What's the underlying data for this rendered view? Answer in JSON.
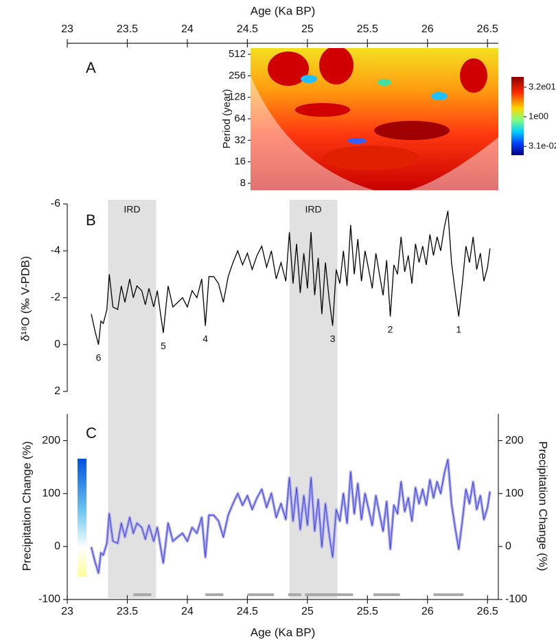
{
  "chart_data": [
    {
      "type": "heatmap",
      "panel": "A",
      "x_label": "Age (Ka BP)",
      "y_label": "Period (year)",
      "xlim": [
        23,
        26.59
      ],
      "xticks": [
        23,
        23.5,
        24,
        24.5,
        25,
        25.5,
        26,
        26.5
      ],
      "ylim": [
        6.4,
        626
      ],
      "log_y": true,
      "yticks": [
        8,
        16,
        32,
        64,
        128,
        256,
        512
      ],
      "clim": [
        0.011,
        107
      ],
      "colorbar_ticks": [
        {
          "value": 32,
          "label": "3.2e01"
        },
        {
          "value": 1,
          "label": "1e00"
        },
        {
          "value": 0.031,
          "label": "3.1e-02"
        }
      ]
    },
    {
      "type": "line",
      "panel": "B",
      "y_label": "δ¹⁸O (‰ V-PDB)",
      "color": "#000000",
      "xlim": [
        23,
        26.59
      ],
      "ylim": [
        2,
        -6
      ],
      "yticks": [
        -6,
        -4,
        -2,
        0,
        2
      ],
      "shaded": [
        {
          "range": [
            23.34,
            23.74
          ],
          "label": "IRD"
        },
        {
          "range": [
            24.85,
            25.25
          ],
          "label": "IRD"
        }
      ],
      "annotations": [
        {
          "text": "6",
          "x": 23.26,
          "y": 0.0
        },
        {
          "text": "5",
          "x": 23.8,
          "y": -0.5
        },
        {
          "text": "4",
          "x": 24.15,
          "y": -0.8
        },
        {
          "text": "3",
          "x": 25.21,
          "y": -0.8
        },
        {
          "text": "2",
          "x": 25.69,
          "y": -1.2
        },
        {
          "text": "1",
          "x": 26.26,
          "y": -1.2
        }
      ],
      "x": [
        23.2,
        23.23,
        23.26,
        23.28,
        23.3,
        23.33,
        23.35,
        23.38,
        23.42,
        23.45,
        23.48,
        23.52,
        23.55,
        23.58,
        23.62,
        23.65,
        23.68,
        23.72,
        23.75,
        23.78,
        23.8,
        23.84,
        23.88,
        23.92,
        23.96,
        24.0,
        24.04,
        24.08,
        24.12,
        24.15,
        24.18,
        24.22,
        24.26,
        24.3,
        24.34,
        24.38,
        24.42,
        24.46,
        24.5,
        24.54,
        24.58,
        24.62,
        24.66,
        24.7,
        24.74,
        24.78,
        24.82,
        24.85,
        24.88,
        24.91,
        24.94,
        24.97,
        25.0,
        25.03,
        25.06,
        25.09,
        25.12,
        25.15,
        25.18,
        25.21,
        25.24,
        25.27,
        25.3,
        25.33,
        25.36,
        25.39,
        25.42,
        25.45,
        25.48,
        25.51,
        25.54,
        25.57,
        25.6,
        25.63,
        25.66,
        25.69,
        25.72,
        25.75,
        25.78,
        25.81,
        25.84,
        25.87,
        25.9,
        25.93,
        25.96,
        25.99,
        26.02,
        26.05,
        26.08,
        26.11,
        26.14,
        26.17,
        26.2,
        26.23,
        26.26,
        26.29,
        26.32,
        26.35,
        26.38,
        26.41,
        26.44,
        26.47,
        26.5,
        26.52
      ],
      "values": [
        -1.3,
        -0.6,
        0.0,
        -1.0,
        -0.9,
        -1.5,
        -3.0,
        -1.6,
        -1.5,
        -2.5,
        -1.8,
        -2.8,
        -2.0,
        -2.5,
        -2.3,
        -1.7,
        -2.4,
        -1.6,
        -2.3,
        -1.2,
        -0.5,
        -2.5,
        -1.6,
        -1.8,
        -2.0,
        -1.6,
        -2.3,
        -2.0,
        -2.8,
        -0.8,
        -2.9,
        -2.9,
        -2.6,
        -1.8,
        -2.9,
        -3.5,
        -4.0,
        -3.4,
        -3.9,
        -3.2,
        -3.8,
        -4.2,
        -3.3,
        -4.0,
        -2.8,
        -3.5,
        -2.7,
        -4.8,
        -2.6,
        -4.3,
        -2.2,
        -3.9,
        -2.4,
        -4.8,
        -2.1,
        -3.7,
        -1.3,
        -3.5,
        -2.0,
        -0.8,
        -3.2,
        -2.6,
        -4.0,
        -2.5,
        -5.1,
        -3.0,
        -4.5,
        -2.7,
        -4.0,
        -3.2,
        -2.4,
        -3.9,
        -3.0,
        -2.1,
        -3.6,
        -1.2,
        -3.4,
        -3.0,
        -4.6,
        -3.1,
        -3.8,
        -2.6,
        -4.3,
        -3.5,
        -4.2,
        -3.4,
        -4.7,
        -3.8,
        -4.6,
        -4.0,
        -5.0,
        -5.7,
        -3.5,
        -2.3,
        -1.2,
        -2.6,
        -4.2,
        -3.5,
        -4.6,
        -3.2,
        -3.9,
        -2.7,
        -3.3,
        -4.1
      ]
    },
    {
      "type": "line",
      "panel": "C",
      "x_label": "Age (Ka BP)",
      "y_label": "Precipitation Change (%)",
      "y2_label": "Precipitation Change (%)",
      "color": "#3a3acc",
      "xlim": [
        23,
        26.59
      ],
      "xticks": [
        23,
        23.5,
        24,
        24.5,
        25,
        25.5,
        26,
        26.5
      ],
      "ylim": [
        -100,
        250
      ],
      "yticks": [
        -100,
        0,
        100,
        200
      ],
      "y2lim": [
        -100,
        250
      ],
      "y2ticks": [
        -100,
        0,
        100,
        200
      ],
      "periods": [
        [
          23.55,
          23.7
        ],
        [
          24.15,
          24.3
        ],
        [
          24.5,
          24.72
        ],
        [
          24.84,
          24.95
        ],
        [
          24.98,
          25.38
        ],
        [
          25.55,
          25.77
        ],
        [
          26.05,
          26.3
        ]
      ],
      "x": [
        23.2,
        23.23,
        23.26,
        23.28,
        23.3,
        23.33,
        23.35,
        23.38,
        23.42,
        23.45,
        23.48,
        23.52,
        23.55,
        23.58,
        23.62,
        23.65,
        23.68,
        23.72,
        23.75,
        23.78,
        23.8,
        23.84,
        23.88,
        23.92,
        23.96,
        24.0,
        24.04,
        24.08,
        24.12,
        24.15,
        24.18,
        24.22,
        24.26,
        24.3,
        24.34,
        24.38,
        24.42,
        24.46,
        24.5,
        24.54,
        24.58,
        24.62,
        24.66,
        24.7,
        24.74,
        24.78,
        24.82,
        24.85,
        24.88,
        24.91,
        24.94,
        24.97,
        25.0,
        25.03,
        25.06,
        25.09,
        25.12,
        25.15,
        25.18,
        25.21,
        25.24,
        25.27,
        25.3,
        25.33,
        25.36,
        25.39,
        25.42,
        25.45,
        25.48,
        25.51,
        25.54,
        25.57,
        25.6,
        25.63,
        25.66,
        25.69,
        25.72,
        25.75,
        25.78,
        25.81,
        25.84,
        25.87,
        25.9,
        25.93,
        25.96,
        25.99,
        26.02,
        26.05,
        26.08,
        26.11,
        26.14,
        26.17,
        26.2,
        26.23,
        26.26,
        26.29,
        26.32,
        26.35,
        26.38,
        26.41,
        26.44,
        26.47,
        26.5,
        26.52
      ],
      "values": [
        -1,
        -28,
        -50,
        -12,
        -16,
        6,
        62,
        10,
        6,
        44,
        18,
        55,
        25,
        44,
        36,
        14,
        40,
        10,
        36,
        -5,
        -31,
        44,
        10,
        18,
        25,
        10,
        36,
        25,
        55,
        -20,
        59,
        59,
        48,
        18,
        59,
        81,
        100,
        78,
        96,
        70,
        92,
        108,
        74,
        100,
        55,
        81,
        51,
        130,
        48,
        111,
        32,
        96,
        40,
        130,
        29,
        89,
        -1,
        81,
        25,
        -20,
        70,
        48,
        100,
        44,
        141,
        62,
        119,
        51,
        100,
        70,
        40,
        96,
        62,
        29,
        85,
        -5,
        78,
        62,
        122,
        66,
        92,
        48,
        111,
        81,
        108,
        78,
        126,
        92,
        122,
        100,
        138,
        164,
        81,
        36,
        -5,
        48,
        108,
        81,
        122,
        70,
        96,
        51,
        74,
        104
      ]
    }
  ]
}
